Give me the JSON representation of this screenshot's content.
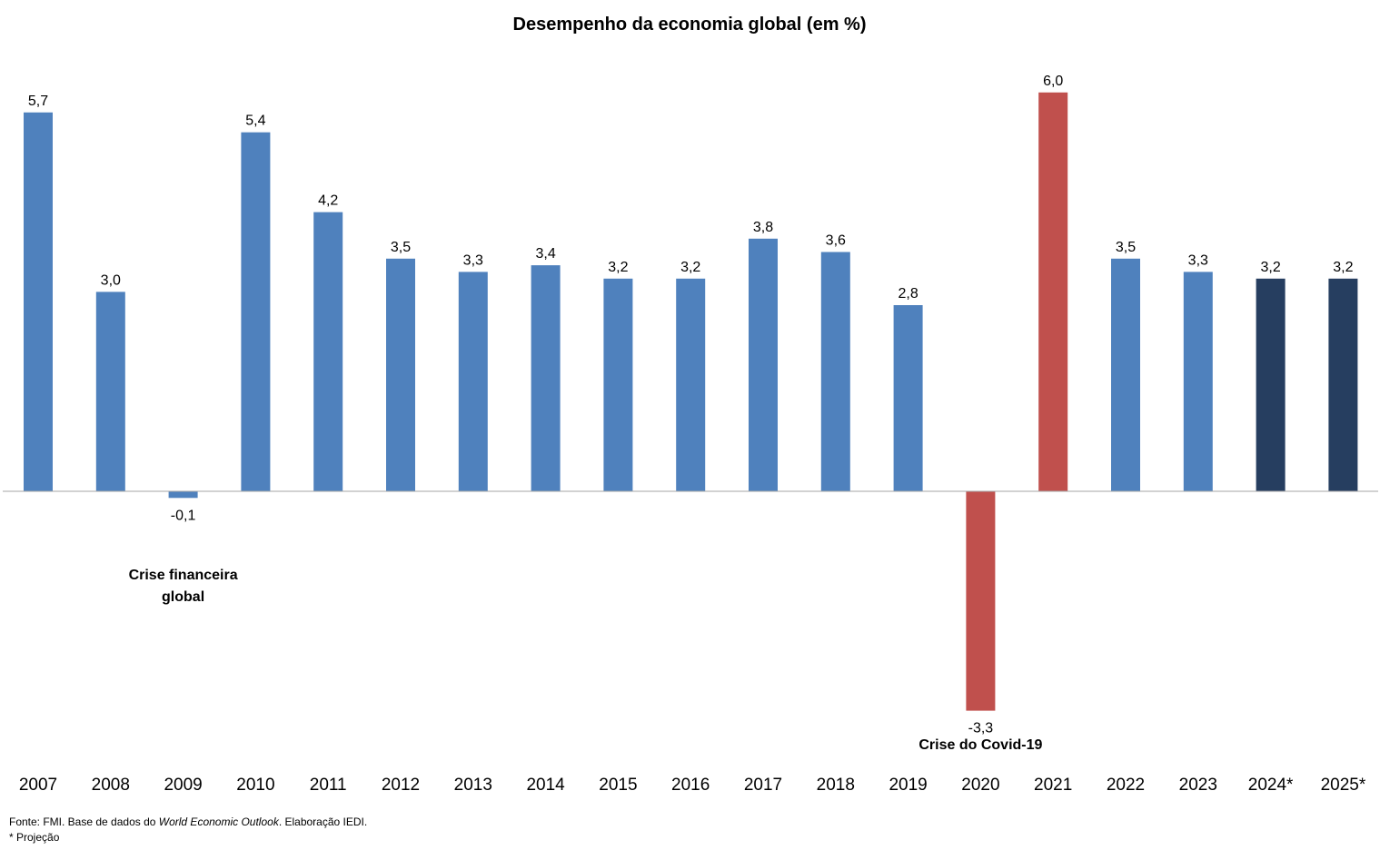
{
  "chart_data": {
    "type": "bar",
    "title": "Desempenho da economia global (em %)",
    "categories": [
      "2007",
      "2008",
      "2009",
      "2010",
      "2011",
      "2012",
      "2013",
      "2014",
      "2015",
      "2016",
      "2017",
      "2018",
      "2019",
      "2020",
      "2021",
      "2022",
      "2023",
      "2024*",
      "2025*"
    ],
    "values": [
      5.7,
      3.0,
      -0.1,
      5.4,
      4.2,
      3.5,
      3.3,
      3.4,
      3.2,
      3.2,
      3.8,
      3.6,
      2.8,
      -3.3,
      6.0,
      3.5,
      3.3,
      3.2,
      3.2
    ],
    "value_labels": [
      "5,7",
      "3,0",
      "-0,1",
      "5,4",
      "4,2",
      "3,5",
      "3,3",
      "3,4",
      "3,2",
      "3,2",
      "3,8",
      "3,6",
      "2,8",
      "-3,3",
      "6,0",
      "3,5",
      "3,3",
      "3,2",
      "3,2"
    ],
    "bar_colors": [
      "#4f81bd",
      "#4f81bd",
      "#4f81bd",
      "#4f81bd",
      "#4f81bd",
      "#4f81bd",
      "#4f81bd",
      "#4f81bd",
      "#4f81bd",
      "#4f81bd",
      "#4f81bd",
      "#4f81bd",
      "#4f81bd",
      "#c0504d",
      "#c0504d",
      "#4f81bd",
      "#4f81bd",
      "#263e60",
      "#263e60"
    ],
    "ylim": [
      -3.3,
      6.0
    ],
    "grid": false,
    "legend": "none",
    "annotations": [
      {
        "text": [
          "Crise financeira",
          "global"
        ],
        "category": "2009"
      },
      {
        "text": [
          "Crise do Covid-19"
        ],
        "category": "2020"
      }
    ]
  },
  "footer": {
    "source_prefix": "Fonte: FMI. Base de dados do ",
    "source_italic": "World Economic Outlook",
    "source_suffix": ". Elaboração IEDI.",
    "note": "* Projeção"
  }
}
